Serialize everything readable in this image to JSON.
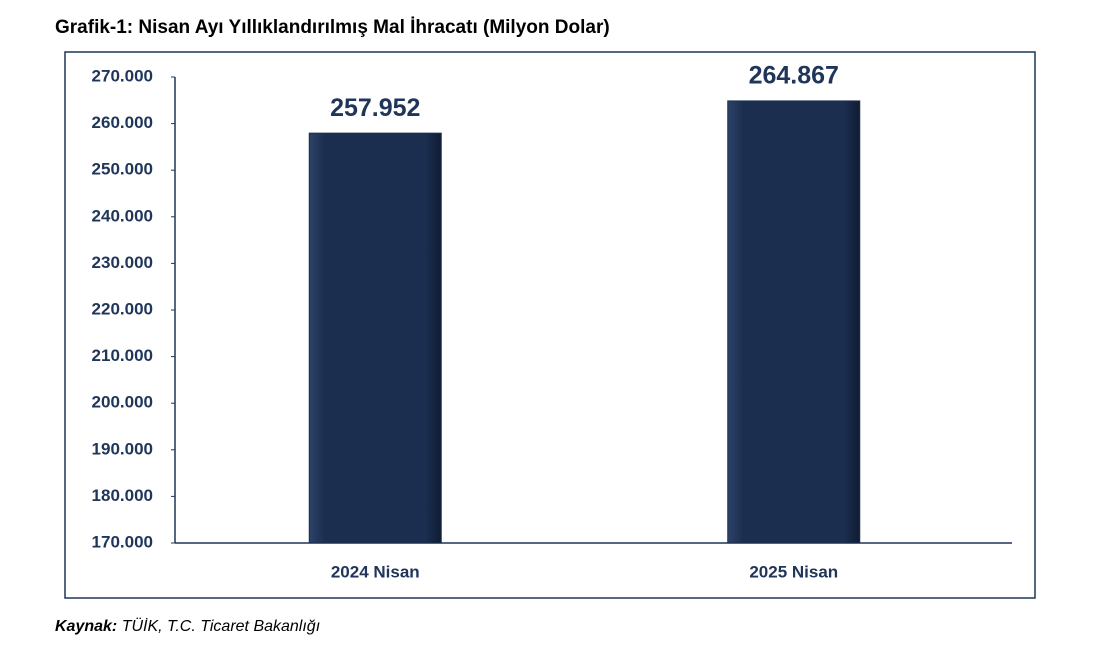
{
  "chart_data": {
    "type": "bar",
    "title": "Grafik-1: Nisan Ayı Yıllıklandırılmış Mal İhracatı (Milyon Dolar)",
    "categories": [
      "2024 Nisan",
      "2025 Nisan"
    ],
    "values": [
      257952,
      264867
    ],
    "value_labels": [
      "257.952",
      "264.867"
    ],
    "color": "#1b2e4f",
    "ylim": [
      170000,
      270000
    ],
    "yticks": [
      {
        "value": 170000,
        "label": "170.000"
      },
      {
        "value": 180000,
        "label": "180.000"
      },
      {
        "value": 190000,
        "label": "190.000"
      },
      {
        "value": 200000,
        "label": "200.000"
      },
      {
        "value": 210000,
        "label": "210.000"
      },
      {
        "value": 220000,
        "label": "220.000"
      },
      {
        "value": 230000,
        "label": "230.000"
      },
      {
        "value": 240000,
        "label": "240.000"
      },
      {
        "value": 250000,
        "label": "250.000"
      },
      {
        "value": 260000,
        "label": "260.000"
      },
      {
        "value": 270000,
        "label": "270.000"
      }
    ],
    "grid": false,
    "source_label": "Kaynak:",
    "source_text": "TÜİK, T.C. Ticaret Bakanlığı"
  }
}
